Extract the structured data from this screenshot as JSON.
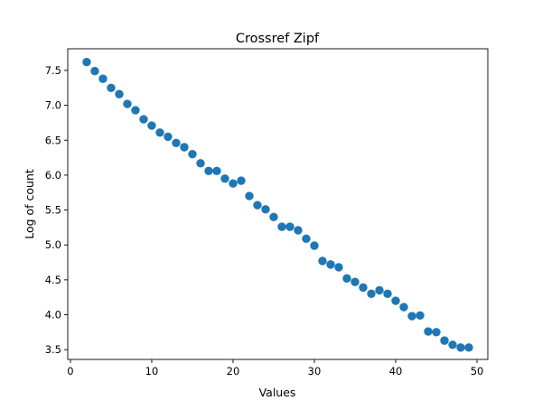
{
  "chart_data": {
    "type": "scatter",
    "title": "Crossref Zipf",
    "xlabel": "Values",
    "ylabel": "Log of count",
    "xlim": [
      -0.33,
      51.33
    ],
    "ylim": [
      3.36,
      7.81
    ],
    "xticks": [
      "0",
      "10",
      "20",
      "30",
      "40",
      "50"
    ],
    "yticks": [
      "3.5",
      "4.0",
      "4.5",
      "5.0",
      "5.5",
      "6.0",
      "6.5",
      "7.0",
      "7.5"
    ],
    "grid": false,
    "color": "#1f77b4",
    "x": [
      2,
      3,
      4,
      5,
      6,
      7,
      8,
      9,
      10,
      11,
      12,
      13,
      14,
      15,
      16,
      17,
      18,
      19,
      20,
      21,
      22,
      23,
      24,
      25,
      26,
      27,
      28,
      29,
      30,
      31,
      32,
      33,
      34,
      35,
      36,
      37,
      38,
      39,
      40,
      41,
      42,
      43,
      44,
      45,
      46,
      47,
      48,
      49
    ],
    "y": [
      7.62,
      7.49,
      7.38,
      7.25,
      7.16,
      7.02,
      6.93,
      6.8,
      6.71,
      6.61,
      6.55,
      6.46,
      6.4,
      6.3,
      6.17,
      6.06,
      6.06,
      5.95,
      5.88,
      5.92,
      5.7,
      5.57,
      5.51,
      5.4,
      5.26,
      5.26,
      5.21,
      5.09,
      4.99,
      4.77,
      4.72,
      4.68,
      4.52,
      4.47,
      4.39,
      4.3,
      4.35,
      4.3,
      4.2,
      4.11,
      3.98,
      3.99,
      3.76,
      3.75,
      3.63,
      3.57,
      3.53,
      3.53
    ]
  }
}
